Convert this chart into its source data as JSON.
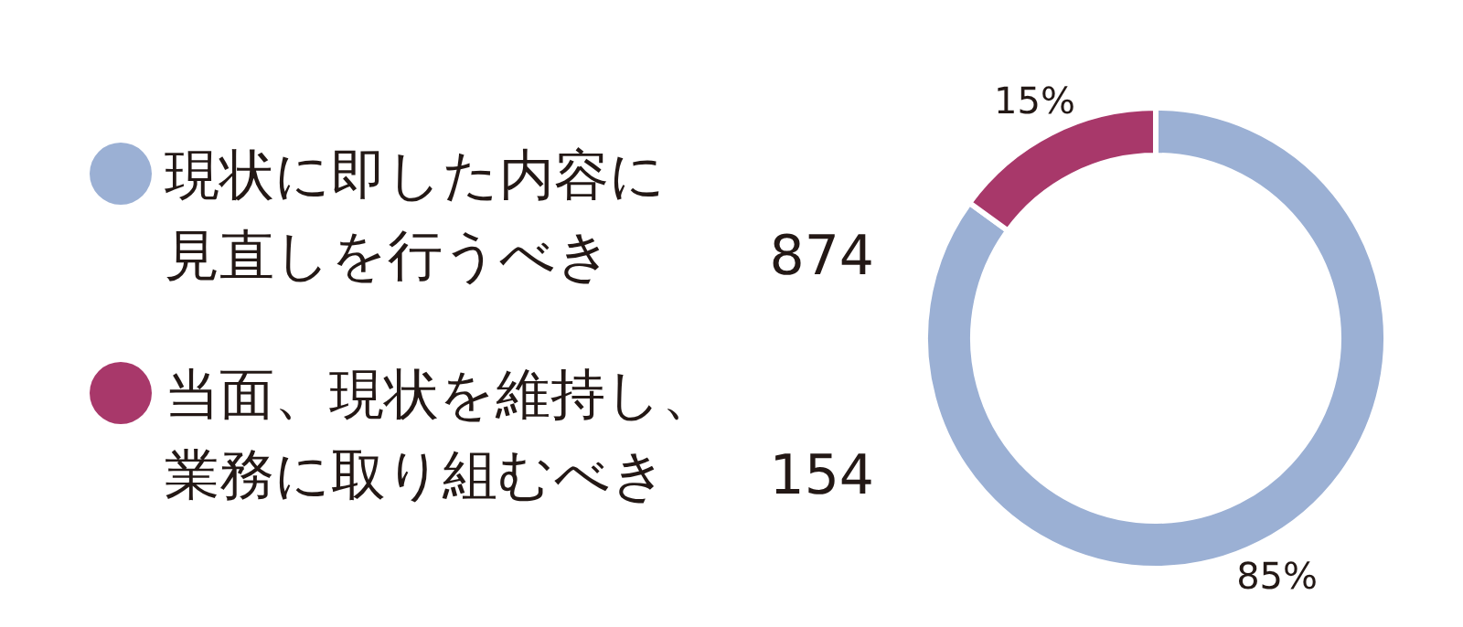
{
  "chart_data": {
    "type": "donut",
    "categories": [
      "現状に即した内容に見直しを行うべき",
      "当面、現状を維持し、業務に取り組むべき"
    ],
    "values": [
      85,
      15
    ],
    "colors": [
      "#9bb0d4",
      "#a8386a"
    ],
    "value_labels": [
      "85%",
      "15%"
    ],
    "annotations": [
      "874",
      "154"
    ],
    "legend": "left"
  }
}
